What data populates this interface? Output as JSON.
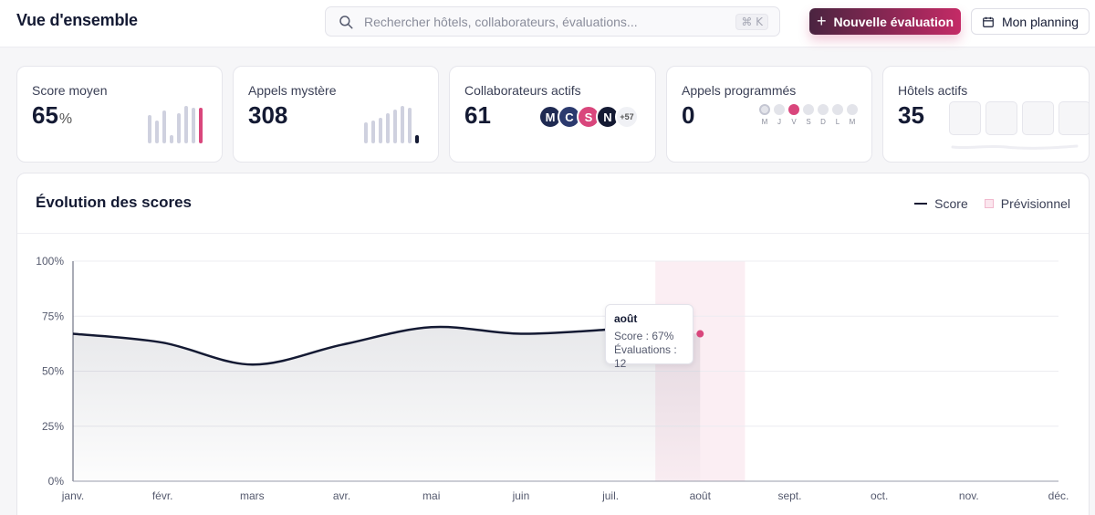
{
  "header": {
    "title": "Vue d'ensemble",
    "search_placeholder": "Rechercher hôtels, collaborateurs, évaluations...",
    "search_shortcut": "⌘ K",
    "new_eval_label": "Nouvelle évaluation",
    "planning_label": "Mon planning"
  },
  "cards": {
    "score": {
      "label": "Score moyen",
      "value": "65",
      "unit": "%",
      "bar_levels": [
        0.68,
        0.55,
        0.78,
        0.2,
        0.72,
        0.9,
        0.85,
        0.85
      ]
    },
    "calls": {
      "label": "Appels mystère",
      "value": "308",
      "bar_levels": [
        0.5,
        0.55,
        0.6,
        0.72,
        0.8,
        0.9,
        0.85,
        0.2
      ]
    },
    "collaborators": {
      "label": "Collaborateurs actifs",
      "value": "61",
      "avatars": [
        {
          "letter": "M",
          "color": "#1f2a52"
        },
        {
          "letter": "C",
          "color": "#2b3a6e"
        },
        {
          "letter": "S",
          "color": "#d9467c"
        },
        {
          "letter": "N",
          "color": "#141a33"
        }
      ],
      "more": "+57"
    },
    "scheduled": {
      "label": "Appels programmés",
      "value": "0",
      "days": [
        "M",
        "J",
        "V",
        "S",
        "D",
        "L",
        "M"
      ],
      "today_index": 0,
      "highlight_index": 2,
      "accent": "#d9467c"
    },
    "hotels": {
      "label": "Hôtels actifs",
      "value": "35"
    }
  },
  "chart": {
    "title": "Évolution des scores",
    "legend_score": "Score",
    "legend_forecast": "Prévisionnel",
    "tooltip": {
      "title": "août",
      "score_line": "Score : 67%",
      "evals_line": "Évaluations : 12"
    }
  },
  "chart_data": {
    "type": "area",
    "x": [
      "janv.",
      "févr.",
      "mars",
      "avr.",
      "mai",
      "juin",
      "juil.",
      "août",
      "sept.",
      "oct.",
      "nov.",
      "déc."
    ],
    "y_ticks": [
      "0%",
      "25%",
      "50%",
      "75%",
      "100%"
    ],
    "ylim": [
      0,
      100
    ],
    "series": [
      {
        "name": "Score",
        "values": [
          67,
          63,
          53,
          62,
          70,
          67,
          69,
          67,
          null,
          null,
          null,
          null
        ],
        "color": "#141a33"
      }
    ],
    "forecast_month": "août",
    "highlight_color": "#d9467c",
    "grid": true
  }
}
